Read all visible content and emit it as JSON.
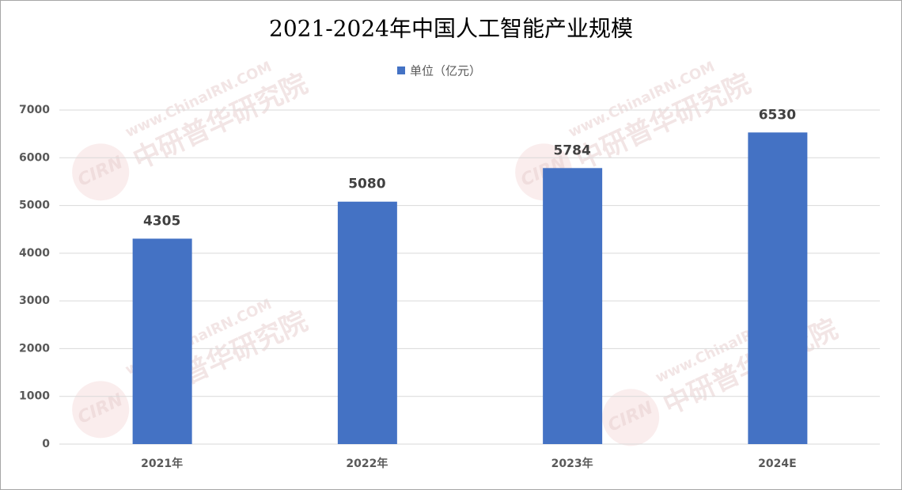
{
  "chart_data": {
    "type": "bar",
    "title": "2021-2024年中国人工智能产业规模",
    "categories": [
      "2021年",
      "2022年",
      "2023年",
      "2024E"
    ],
    "series": [
      {
        "name": "单位（亿元）",
        "color": "#4472c4",
        "values": [
          4305,
          5080,
          5784,
          6530
        ]
      }
    ],
    "ylim": [
      0,
      7000
    ],
    "yticks": [
      0,
      1000,
      2000,
      3000,
      4000,
      5000,
      6000,
      7000
    ],
    "grid": true,
    "legend": "top",
    "watermark": {
      "logo": "CIRN",
      "name": "中研普华研究院",
      "site": "www.ChinaIRN.COM"
    }
  }
}
